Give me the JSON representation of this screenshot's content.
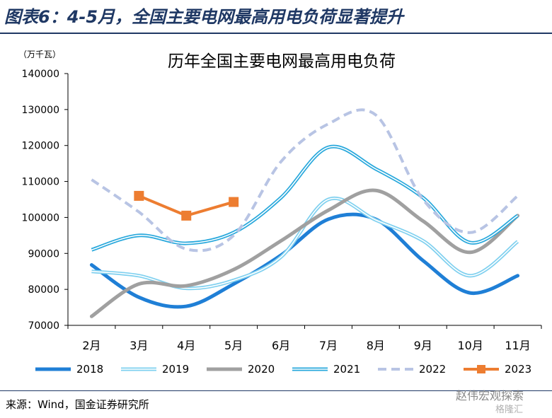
{
  "figure": {
    "title": "图表6：4-5月，全国主要电网最高用电负荷显著提升",
    "source": "来源：Wind，国金证券研究所",
    "watermark": "赵伟宏观探索",
    "watermark2": "格隆汇"
  },
  "chart_data": {
    "type": "line",
    "title": "历年全国主要电网最高用电负荷",
    "unit_label": "（万千瓦）",
    "xlabel": "",
    "ylabel": "",
    "categories": [
      "2月",
      "3月",
      "4月",
      "5月",
      "6月",
      "7月",
      "8月",
      "9月",
      "10月",
      "11月"
    ],
    "ylim": [
      70000,
      140000
    ],
    "yticks": [
      70000,
      80000,
      90000,
      100000,
      110000,
      120000,
      130000,
      140000
    ],
    "grid": false,
    "legend_position": "bottom",
    "series": [
      {
        "name": "2018",
        "color": "#1f7fd6",
        "style": "thick",
        "values": [
          86800,
          77800,
          75300,
          81500,
          89500,
          99500,
          99500,
          88000,
          79000,
          83800
        ]
      },
      {
        "name": "2019",
        "color": "#7fd0ef",
        "style": "double",
        "values": [
          85000,
          83800,
          80300,
          82500,
          89000,
          105000,
          99300,
          93500,
          83800,
          93300
        ]
      },
      {
        "name": "2020",
        "color": "#a0a0a0",
        "style": "thick",
        "values": [
          72500,
          81500,
          81000,
          85500,
          93500,
          102000,
          107500,
          99000,
          90300,
          100500
        ]
      },
      {
        "name": "2021",
        "color": "#28a8dc",
        "style": "double",
        "values": [
          91000,
          95000,
          92800,
          95800,
          105500,
          119500,
          113500,
          105500,
          93000,
          100500
        ]
      },
      {
        "name": "2022",
        "color": "#b8c4e4",
        "style": "dashed",
        "values": [
          110500,
          101500,
          91200,
          95000,
          115500,
          126000,
          128500,
          105000,
          95800,
          106000
        ]
      },
      {
        "name": "2023",
        "color": "#ed7d31",
        "style": "markers",
        "values": [
          null,
          106000,
          100500,
          104300,
          null,
          null,
          null,
          null,
          null,
          null
        ]
      }
    ]
  }
}
